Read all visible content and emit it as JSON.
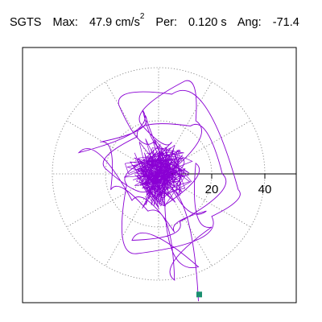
{
  "header": {
    "station": "SGTS",
    "max_label": "Max:",
    "max_value": "47.9 cm/s",
    "max_exponent": "2",
    "per_label": "Per:",
    "per_value": "0.120 s",
    "ang_label": "Ang:",
    "ang_value": "-71.4"
  },
  "chart_data": {
    "type": "line",
    "title": "SGTS  Max: 47.9 cm/s2  Per: 0.120 s  Ang: -71.4",
    "xlabel": "",
    "ylabel": "",
    "radial_ticks": [
      20,
      40
    ],
    "radial_tick_labels": [
      "20",
      "40"
    ],
    "rings": [
      20,
      40
    ],
    "grid": true,
    "polar_grid_angles_deg": [
      0,
      30,
      60,
      90,
      120,
      150,
      180,
      210,
      240,
      270,
      300,
      330
    ],
    "series": [
      {
        "color": "#8a00d4",
        "description_points": "particle motion trace (approximate x,y in cm/s2)",
        "x": [
          0,
          3,
          -2,
          5,
          -6,
          10,
          14,
          -3,
          -20,
          -8,
          12,
          24,
          8,
          -10,
          15,
          3,
          -6,
          -30,
          -10,
          6,
          18,
          -2,
          -15,
          5,
          30,
          20,
          -8,
          -12,
          3,
          8,
          10,
          -5,
          -22,
          -18,
          -4,
          6,
          20,
          14,
          2,
          9,
          -3,
          15
        ],
        "y": [
          0,
          4,
          -3,
          12,
          18,
          35,
          20,
          -5,
          2,
          14,
          18,
          0,
          -18,
          -25,
          -35,
          10,
          24,
          8,
          -10,
          -22,
          -14,
          12,
          26,
          30,
          -6,
          -16,
          -30,
          -4,
          8,
          -8,
          2,
          22,
          12,
          -6,
          -14,
          -40,
          -20,
          4,
          -12,
          6,
          -4,
          -47.9
        ]
      }
    ],
    "end_marker": {
      "x": 15.3,
      "y": -45.4,
      "color": "#1a8f6f"
    }
  }
}
